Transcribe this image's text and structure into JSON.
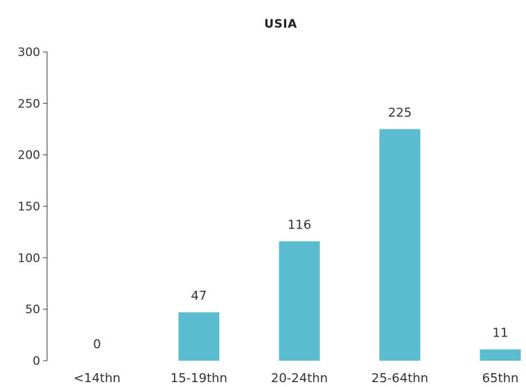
{
  "chart_data": {
    "type": "bar",
    "title": "USIA",
    "xlabel": "",
    "ylabel": "",
    "categories": [
      "<14thn",
      "15-19thn",
      "20-24thn",
      "25-64thn",
      "65thn"
    ],
    "values": [
      0,
      47,
      116,
      225,
      11
    ],
    "data_labels": [
      "0",
      "47",
      "116",
      "225",
      "11"
    ],
    "ylim": [
      0,
      300
    ],
    "yticks": [
      0,
      50,
      100,
      150,
      200,
      250,
      300
    ],
    "grid": false,
    "legend": "none",
    "bar_color": "#5bbccf"
  }
}
